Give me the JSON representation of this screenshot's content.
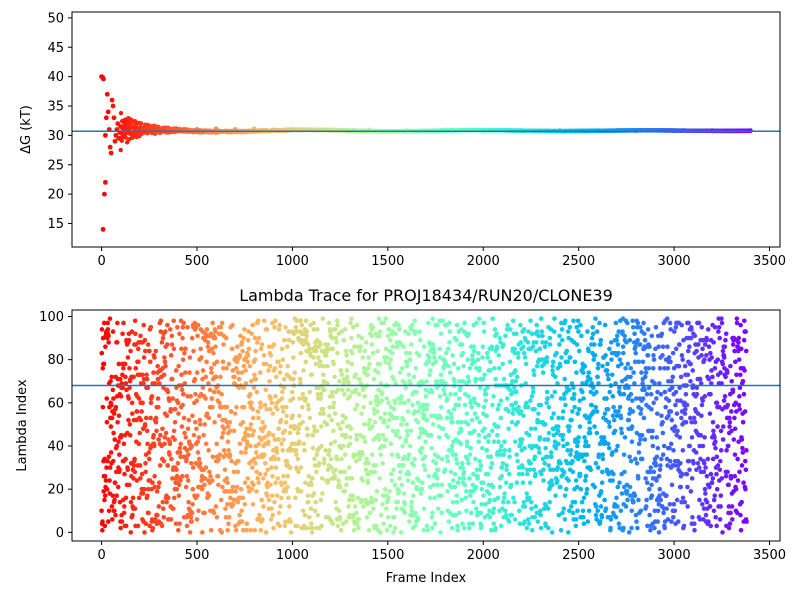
{
  "chart_data": [
    {
      "type": "scatter",
      "title": "",
      "xlabel": "",
      "ylabel": "ΔG (kT)",
      "xlim": [
        -155,
        3555
      ],
      "ylim": [
        11,
        51
      ],
      "xticks": [
        0,
        500,
        1000,
        1500,
        2000,
        2500,
        3000,
        3500
      ],
      "yticks": [
        15,
        20,
        25,
        30,
        35,
        40,
        45,
        50
      ],
      "grid": false,
      "legend": "none",
      "colormap": "rainbow (red at frame 0 → violet at final frame)",
      "reference_line": {
        "y": 30.7,
        "color": "#1f77b4"
      },
      "series": [
        {
          "points": [
            [
              0,
              40.0
            ],
            [
              5,
              39.9
            ],
            [
              10,
              39.6
            ],
            [
              15,
              20.0
            ],
            [
              20,
              22.0
            ],
            [
              8,
              14.0
            ],
            [
              20,
              30.0
            ],
            [
              25,
              33.0
            ],
            [
              30,
              37.0
            ],
            [
              35,
              34.0
            ],
            [
              40,
              31.0
            ],
            [
              45,
              28.0
            ],
            [
              50,
              27.0
            ],
            [
              55,
              36.0
            ],
            [
              60,
              35.0
            ],
            [
              65,
              33.0
            ],
            [
              70,
              29.0
            ],
            [
              75,
              30.0
            ],
            [
              80,
              31.0
            ],
            [
              85,
              32.0
            ],
            [
              90,
              29.5
            ],
            [
              95,
              30.5
            ],
            [
              100,
              31.5
            ],
            [
              110,
              30.2
            ],
            [
              120,
              29.8
            ],
            [
              130,
              31.0
            ],
            [
              140,
              31.7
            ],
            [
              150,
              30.3
            ],
            [
              160,
              29.6
            ],
            [
              170,
              31.4
            ],
            [
              180,
              30.9
            ],
            [
              200,
              30.1
            ],
            [
              220,
              31.2
            ],
            [
              240,
              30.4
            ],
            [
              260,
              30.8
            ],
            [
              280,
              30.3
            ],
            [
              300,
              30.6
            ],
            [
              350,
              30.5
            ],
            [
              400,
              30.9
            ],
            [
              450,
              30.8
            ],
            [
              500,
              31.0
            ],
            [
              600,
              31.1
            ],
            [
              700,
              31.0
            ],
            [
              800,
              31.1
            ],
            [
              900,
              30.9
            ],
            [
              1000,
              31.0
            ],
            [
              1200,
              30.8
            ],
            [
              1400,
              30.9
            ],
            [
              1600,
              30.8
            ],
            [
              1800,
              30.9
            ],
            [
              2000,
              30.8
            ],
            [
              2200,
              30.8
            ],
            [
              2400,
              30.8
            ],
            [
              2600,
              30.8
            ],
            [
              2800,
              30.8
            ],
            [
              3000,
              30.8
            ],
            [
              3200,
              30.8
            ],
            [
              3400,
              30.8
            ]
          ]
        }
      ]
    },
    {
      "type": "scatter",
      "title": "Lambda Trace for PROJ18434/RUN20/CLONE39",
      "xlabel": "Frame Index",
      "ylabel": "Lambda Index",
      "xlim": [
        -155,
        3555
      ],
      "ylim": [
        -4,
        103
      ],
      "xticks": [
        0,
        500,
        1000,
        1500,
        2000,
        2500,
        3000,
        3500
      ],
      "yticks": [
        0,
        20,
        40,
        60,
        80,
        100
      ],
      "grid": false,
      "legend": "none",
      "colormap": "rainbow (red at frame 0 → violet at final frame)",
      "reference_line": {
        "y": 68,
        "color": "#1f77b4"
      },
      "frame_range": [
        0,
        3380
      ],
      "lambda_range": [
        0,
        99
      ],
      "point_count": 3381,
      "distribution": "approximately uniform random lambda index in 0–99 for each frame"
    }
  ]
}
